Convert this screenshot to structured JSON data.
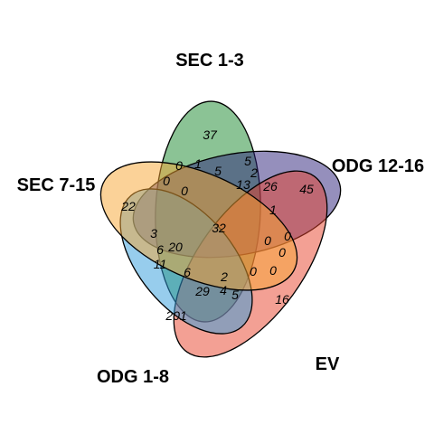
{
  "sets": [
    {
      "name": "SEC 1-3",
      "color": "#3d9b4f"
    },
    {
      "name": "ODG 12-16",
      "color": "#2b1f7a"
    },
    {
      "name": "EV",
      "color": "#e8412a"
    },
    {
      "name": "ODG 1-8",
      "color": "#2f9bdc"
    },
    {
      "name": "SEC 7-15",
      "color": "#f7a531"
    }
  ],
  "counts": [
    {
      "region": "SEC 1-3 only",
      "value": "37"
    },
    {
      "region": "ODG 12-16 only",
      "value": "45"
    },
    {
      "region": "EV only",
      "value": "16"
    },
    {
      "region": "ODG 1-8 only",
      "value": "201"
    },
    {
      "region": "SEC 7-15 only",
      "value": "22"
    },
    {
      "region": "all five",
      "value": "32"
    },
    {
      "region": "r-0a",
      "value": "0"
    },
    {
      "region": "r-1a",
      "value": "1"
    },
    {
      "region": "r-5a",
      "value": "5"
    },
    {
      "region": "r-5b",
      "value": "5"
    },
    {
      "region": "r-0b",
      "value": "0"
    },
    {
      "region": "r-0c",
      "value": "0"
    },
    {
      "region": "r-2a",
      "value": "2"
    },
    {
      "region": "r-13",
      "value": "13"
    },
    {
      "region": "r-26",
      "value": "26"
    },
    {
      "region": "r-1b",
      "value": "1"
    },
    {
      "region": "r-0d",
      "value": "0"
    },
    {
      "region": "r-0e",
      "value": "0"
    },
    {
      "region": "r-0f",
      "value": "0"
    },
    {
      "region": "r-0g",
      "value": "0"
    },
    {
      "region": "r-0h",
      "value": "0"
    },
    {
      "region": "r-3",
      "value": "3"
    },
    {
      "region": "r-6a",
      "value": "6"
    },
    {
      "region": "r-20",
      "value": "20"
    },
    {
      "region": "r-11",
      "value": "11"
    },
    {
      "region": "r-6b",
      "value": "6"
    },
    {
      "region": "r-2b",
      "value": "2"
    },
    {
      "region": "r-29",
      "value": "29"
    },
    {
      "region": "r-4",
      "value": "4"
    },
    {
      "region": "r-5c",
      "value": "5"
    }
  ]
}
